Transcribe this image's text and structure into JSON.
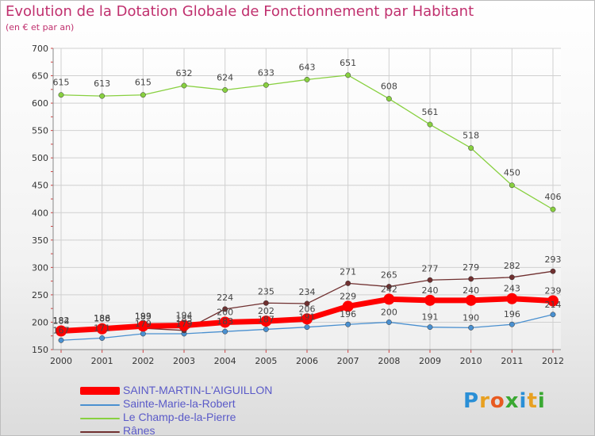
{
  "title": "Evolution de la Dotation Globale de Fonctionnement par Habitant",
  "subtitle": "(en € et par an)",
  "brand": {
    "text": "Proxiti",
    "letters": [
      {
        "ch": "P",
        "color": "#2a8fd6"
      },
      {
        "ch": "r",
        "color": "#e8a020"
      },
      {
        "ch": "o",
        "color": "#e85a20"
      },
      {
        "ch": "x",
        "color": "#3aa832"
      },
      {
        "ch": "i",
        "color": "#2a8fd6"
      },
      {
        "ch": "t",
        "color": "#e8a020"
      },
      {
        "ch": "i",
        "color": "#3aa832"
      }
    ]
  },
  "chart_data": {
    "type": "line",
    "x": [
      "2000",
      "2001",
      "2002",
      "2003",
      "2004",
      "2005",
      "2006",
      "2007",
      "2008",
      "2009",
      "2010",
      "2011",
      "2012"
    ],
    "ylim": [
      150,
      700
    ],
    "yticks": [
      150,
      200,
      250,
      300,
      350,
      400,
      450,
      500,
      550,
      600,
      650,
      700
    ],
    "grid": true,
    "legend": "bottom",
    "series": [
      {
        "name": "SAINT-MARTIN-L'AIGUILLON",
        "color": "#ff0000",
        "values": [
          184,
          188,
          193,
          194,
          200,
          202,
          206,
          229,
          242,
          240,
          240,
          243,
          239
        ],
        "labels": [
          "184",
          "188",
          "193",
          "194",
          "200",
          "202",
          "206",
          "229",
          "242",
          "240",
          "240",
          "243",
          "239"
        ]
      },
      {
        "name": "Sainte-Marie-la-Robert",
        "color": "#4a90d0",
        "values": [
          167,
          171,
          179,
          179,
          183,
          187,
          191,
          196,
          200,
          191,
          190,
          196,
          214
        ],
        "labels": [
          "167",
          "171",
          "179",
          "179",
          "183",
          "187",
          "191",
          "196",
          "200",
          "191",
          "190",
          "196",
          "214"
        ]
      },
      {
        "name": "Le Champ-de-la-Pierre",
        "color": "#88d040",
        "values": [
          615,
          613,
          615,
          632,
          624,
          633,
          643,
          651,
          608,
          561,
          518,
          450,
          406
        ],
        "labels": [
          "615",
          "613",
          "615",
          "632",
          "624",
          "633",
          "643",
          "651",
          "608",
          "561",
          "518",
          "450",
          "406"
        ]
      },
      {
        "name": "Rânes",
        "color": "#703030",
        "values": [
          182,
          186,
          189,
          185,
          224,
          235,
          234,
          271,
          265,
          277,
          279,
          282,
          293
        ],
        "labels": [
          "182",
          "186",
          "189",
          "185",
          "224",
          "235",
          "234",
          "271",
          "265",
          "277",
          "279",
          "282",
          "293"
        ]
      }
    ]
  }
}
